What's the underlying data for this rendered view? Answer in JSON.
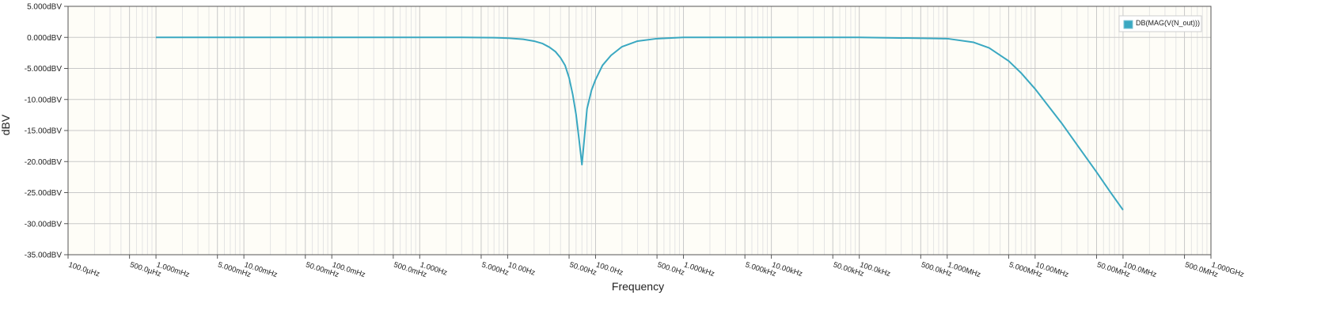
{
  "chart_data": {
    "type": "line",
    "title": "",
    "xlabel": "Frequency",
    "ylabel": "dBV",
    "xscale": "log",
    "xlim_hz": [
      0.0001,
      1000000000
    ],
    "ylim": [
      -35,
      5
    ],
    "grid": true,
    "legend_position": "top-right",
    "y_ticks": [
      {
        "value": 5,
        "label": "5.000dBV"
      },
      {
        "value": 0,
        "label": "0.000dBV"
      },
      {
        "value": -5,
        "label": "-5.000dBV"
      },
      {
        "value": -10,
        "label": "-10.00dBV"
      },
      {
        "value": -15,
        "label": "-15.00dBV"
      },
      {
        "value": -20,
        "label": "-20.00dBV"
      },
      {
        "value": -25,
        "label": "-25.00dBV"
      },
      {
        "value": -30,
        "label": "-30.00dBV"
      },
      {
        "value": -35,
        "label": "-35.00dBV"
      }
    ],
    "x_ticks": [
      {
        "value": 0.0001,
        "label": "100.0µHz"
      },
      {
        "value": 0.0005,
        "label": "500.0µHz"
      },
      {
        "value": 0.001,
        "label": "1.000mHz"
      },
      {
        "value": 0.005,
        "label": "5.000mHz"
      },
      {
        "value": 0.01,
        "label": "10.00mHz"
      },
      {
        "value": 0.05,
        "label": "50.00mHz"
      },
      {
        "value": 0.1,
        "label": "100.0mHz"
      },
      {
        "value": 0.5,
        "label": "500.0mHz"
      },
      {
        "value": 1,
        "label": "1.000Hz"
      },
      {
        "value": 5,
        "label": "5.000Hz"
      },
      {
        "value": 10,
        "label": "10.00Hz"
      },
      {
        "value": 50,
        "label": "50.00Hz"
      },
      {
        "value": 100,
        "label": "100.0Hz"
      },
      {
        "value": 500,
        "label": "500.0Hz"
      },
      {
        "value": 1000,
        "label": "1.000kHz"
      },
      {
        "value": 5000,
        "label": "5.000kHz"
      },
      {
        "value": 10000,
        "label": "10.00kHz"
      },
      {
        "value": 50000,
        "label": "50.00kHz"
      },
      {
        "value": 100000,
        "label": "100.0kHz"
      },
      {
        "value": 500000,
        "label": "500.0kHz"
      },
      {
        "value": 1000000,
        "label": "1.000MHz"
      },
      {
        "value": 5000000,
        "label": "5.000MHz"
      },
      {
        "value": 10000000,
        "label": "10.00MHz"
      },
      {
        "value": 50000000,
        "label": "50.00MHz"
      },
      {
        "value": 100000000,
        "label": "100.0MHz"
      },
      {
        "value": 500000000,
        "label": "500.0MHz"
      },
      {
        "value": 1000000000,
        "label": "1.000GHz"
      }
    ],
    "series": [
      {
        "name": "DB(MAG(V(N_out)))",
        "color": "#3aa8c1",
        "x_hz": [
          0.001,
          0.01,
          0.1,
          1,
          3,
          7,
          10,
          15,
          20,
          25,
          30,
          35,
          40,
          45,
          50,
          55,
          60,
          65,
          70,
          80,
          90,
          100,
          120,
          150,
          200,
          300,
          500,
          1000,
          10000,
          100000,
          1000000,
          2000000,
          3000000,
          5000000,
          7000000,
          10000000,
          20000000,
          30000000,
          50000000,
          70000000,
          100000000
        ],
        "y_dbv": [
          0,
          0,
          0,
          0,
          0,
          -0.05,
          -0.12,
          -0.3,
          -0.6,
          -1.0,
          -1.6,
          -2.3,
          -3.3,
          -4.5,
          -6.5,
          -9.2,
          -12.4,
          -16.5,
          -20.5,
          -11.5,
          -8.5,
          -6.8,
          -4.5,
          -2.9,
          -1.5,
          -0.6,
          -0.2,
          0,
          0,
          0,
          -0.2,
          -0.8,
          -1.7,
          -3.8,
          -5.8,
          -8.3,
          -13.8,
          -17.3,
          -21.7,
          -24.7,
          -27.8
        ]
      }
    ]
  }
}
